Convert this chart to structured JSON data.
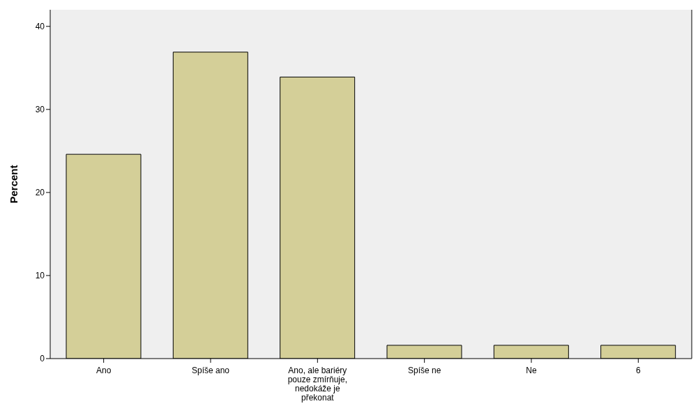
{
  "chart_data": {
    "type": "bar",
    "ylabel": "Percent",
    "categories": [
      "Ano",
      "Spíše ano",
      "Ano, ale bariéry pouze zmírňuje, nedokáže je překonat",
      "Spíše ne",
      "Ne",
      "6"
    ],
    "values": [
      24.6,
      36.9,
      33.9,
      1.6,
      1.6,
      1.6
    ],
    "color": "#d4cf98",
    "ylim": [
      0,
      42
    ],
    "yticks": [
      0,
      10,
      20,
      30,
      40
    ]
  }
}
